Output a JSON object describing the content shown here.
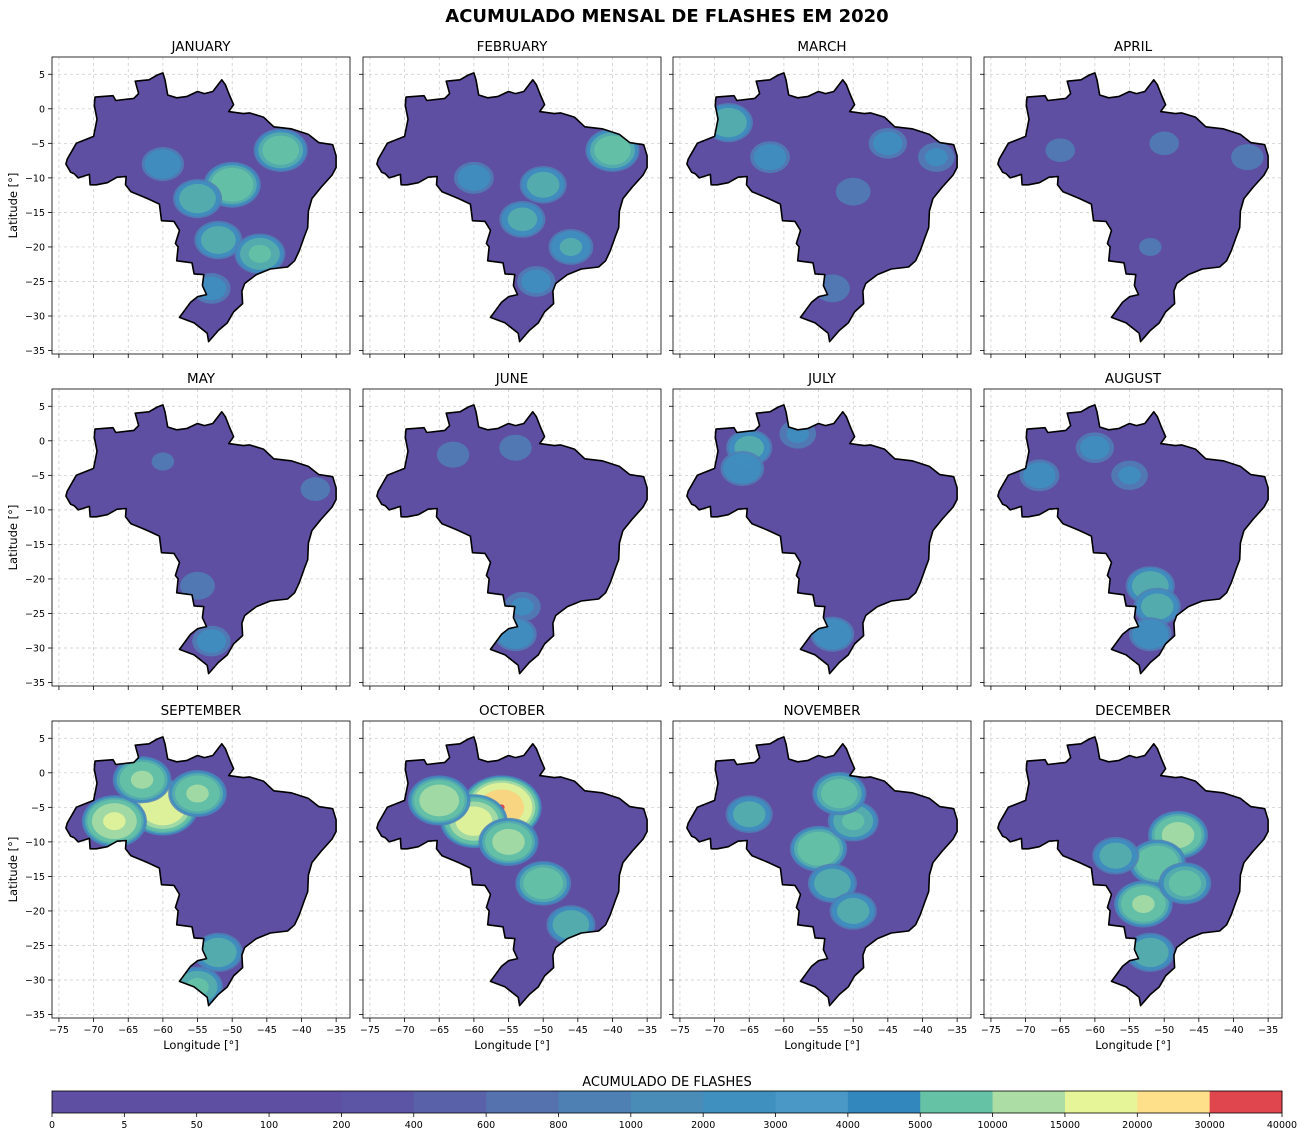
{
  "figure": {
    "title": "ACUMULADO MENSAL DE FLASHES EM 2020"
  },
  "chart_data": {
    "type": "heatmap",
    "title": "ACUMULADO MENSAL DE FLASHES EM 2020",
    "panels": [
      {
        "title": "JANUARY",
        "hotspots": [
          {
            "lon": -43,
            "lat": -6,
            "value": 12000
          },
          {
            "lon": -50,
            "lat": -11,
            "value": 14000
          },
          {
            "lon": -55,
            "lat": -13,
            "value": 9000
          },
          {
            "lon": -52,
            "lat": -19,
            "value": 8500
          },
          {
            "lon": -46,
            "lat": -21,
            "value": 10000
          },
          {
            "lon": -60,
            "lat": -8,
            "value": 6000
          },
          {
            "lon": -53,
            "lat": -26,
            "value": 4500
          }
        ]
      },
      {
        "title": "FEBRUARY",
        "hotspots": [
          {
            "lon": -40,
            "lat": -6,
            "value": 12000
          },
          {
            "lon": -50,
            "lat": -11,
            "value": 8000
          },
          {
            "lon": -53,
            "lat": -16,
            "value": 7500
          },
          {
            "lon": -46,
            "lat": -20,
            "value": 7000
          },
          {
            "lon": -60,
            "lat": -10,
            "value": 5000
          },
          {
            "lon": -51,
            "lat": -25,
            "value": 4500
          }
        ]
      },
      {
        "title": "MARCH",
        "hotspots": [
          {
            "lon": -68,
            "lat": -2,
            "value": 9000
          },
          {
            "lon": -62,
            "lat": -7,
            "value": 5000
          },
          {
            "lon": -45,
            "lat": -5,
            "value": 4500
          },
          {
            "lon": -38,
            "lat": -7,
            "value": 4000
          },
          {
            "lon": -50,
            "lat": -12,
            "value": 3500
          },
          {
            "lon": -53,
            "lat": -26,
            "value": 3500
          }
        ]
      },
      {
        "title": "APRIL",
        "hotspots": [
          {
            "lon": -65,
            "lat": -6,
            "value": 2500
          },
          {
            "lon": -50,
            "lat": -5,
            "value": 2500
          },
          {
            "lon": -38,
            "lat": -7,
            "value": 3000
          },
          {
            "lon": -52,
            "lat": -20,
            "value": 2000
          }
        ]
      },
      {
        "title": "MAY",
        "hotspots": [
          {
            "lon": -55,
            "lat": -21,
            "value": 3500
          },
          {
            "lon": -53,
            "lat": -29,
            "value": 4500
          },
          {
            "lon": -38,
            "lat": -7,
            "value": 2500
          },
          {
            "lon": -60,
            "lat": -3,
            "value": 2000
          }
        ]
      },
      {
        "title": "JUNE",
        "hotspots": [
          {
            "lon": -53,
            "lat": -24,
            "value": 4000
          },
          {
            "lon": -54,
            "lat": -28,
            "value": 6000
          },
          {
            "lon": -63,
            "lat": -2,
            "value": 3000
          },
          {
            "lon": -54,
            "lat": -1,
            "value": 3000
          }
        ]
      },
      {
        "title": "JULY",
        "hotspots": [
          {
            "lon": -65,
            "lat": -1,
            "value": 7500
          },
          {
            "lon": -66,
            "lat": -4,
            "value": 6500
          },
          {
            "lon": -53,
            "lat": -28,
            "value": 6500
          },
          {
            "lon": -58,
            "lat": 1,
            "value": 4000
          }
        ]
      },
      {
        "title": "AUGUST",
        "hotspots": [
          {
            "lon": -52,
            "lat": -21,
            "value": 9000
          },
          {
            "lon": -51,
            "lat": -24,
            "value": 8000
          },
          {
            "lon": -52,
            "lat": -28,
            "value": 6000
          },
          {
            "lon": -68,
            "lat": -5,
            "value": 5000
          },
          {
            "lon": -60,
            "lat": -1,
            "value": 4500
          },
          {
            "lon": -55,
            "lat": -5,
            "value": 4000
          }
        ]
      },
      {
        "title": "SEPTEMBER",
        "hotspots": [
          {
            "lon": -60,
            "lat": -5,
            "value": 25000
          },
          {
            "lon": -67,
            "lat": -7,
            "value": 20000
          },
          {
            "lon": -63,
            "lat": -1,
            "value": 15000
          },
          {
            "lon": -55,
            "lat": -3,
            "value": 15000
          },
          {
            "lon": -52,
            "lat": -26,
            "value": 9000
          },
          {
            "lon": -55,
            "lat": -31,
            "value": 10000
          }
        ]
      },
      {
        "title": "OCTOBER",
        "hotspots": [
          {
            "lon": -56,
            "lat": -5,
            "value": 35000
          },
          {
            "lon": -60,
            "lat": -7,
            "value": 22000
          },
          {
            "lon": -65,
            "lat": -4,
            "value": 18000
          },
          {
            "lon": -55,
            "lat": -10,
            "value": 16000
          },
          {
            "lon": -50,
            "lat": -16,
            "value": 13000
          },
          {
            "lon": -46,
            "lat": -22,
            "value": 9000
          }
        ]
      },
      {
        "title": "NOVEMBER",
        "hotspots": [
          {
            "lon": -55,
            "lat": -11,
            "value": 14000
          },
          {
            "lon": -50,
            "lat": -7,
            "value": 10000
          },
          {
            "lon": -52,
            "lat": -3,
            "value": 12000
          },
          {
            "lon": -53,
            "lat": -16,
            "value": 9000
          },
          {
            "lon": -65,
            "lat": -6,
            "value": 8000
          },
          {
            "lon": -50,
            "lat": -20,
            "value": 8000
          }
        ]
      },
      {
        "title": "DECEMBER",
        "hotspots": [
          {
            "lon": -48,
            "lat": -9,
            "value": 16000
          },
          {
            "lon": -51,
            "lat": -13,
            "value": 14000
          },
          {
            "lon": -53,
            "lat": -19,
            "value": 15000
          },
          {
            "lon": -47,
            "lat": -16,
            "value": 11000
          },
          {
            "lon": -57,
            "lat": -12,
            "value": 8000
          },
          {
            "lon": -52,
            "lat": -26,
            "value": 9000
          }
        ]
      }
    ],
    "xlabel": "Longitude [°]",
    "ylabel": "Latitude [°]",
    "xlim": [
      -76,
      -33
    ],
    "ylim": [
      -35.5,
      7.5
    ],
    "xticks": [
      -75,
      -70,
      -65,
      -60,
      -55,
      -50,
      -45,
      -40,
      -35
    ],
    "xtick_labels": [
      "−75",
      "−70",
      "−65",
      "−60",
      "−55",
      "−50",
      "−45",
      "−40",
      "−35"
    ],
    "yticks": [
      5,
      0,
      -5,
      -10,
      -15,
      -20,
      -25,
      -30,
      -35
    ],
    "ytick_labels": [
      "5",
      "0",
      "−5",
      "−10",
      "−15",
      "−20",
      "−25",
      "−30",
      "−35"
    ],
    "grid": true,
    "colorbar": {
      "title": "ACUMULADO DE FLASHES",
      "levels": [
        0,
        5,
        50,
        100,
        200,
        400,
        600,
        800,
        1000,
        2000,
        3000,
        4000,
        5000,
        10000,
        15000,
        20000,
        30000,
        40000
      ],
      "labels": [
        "0",
        "5",
        "50",
        "100",
        "200",
        "400",
        "600",
        "800",
        "1000",
        "2000",
        "3000",
        "4000",
        "5000",
        "10000",
        "15000",
        "20000",
        "30000",
        "40000"
      ],
      "colors": [
        "#5e4fa2",
        "#5e4fa2",
        "#5e4fa2",
        "#5e4fa2",
        "#5c55a5",
        "#5962a9",
        "#5571ae",
        "#4e80b4",
        "#4a8cb8",
        "#3f8fbf",
        "#4a98c6",
        "#3288bd",
        "#66c2a5",
        "#abdda4",
        "#e6f598",
        "#fee08b",
        "#e0464e"
      ]
    }
  }
}
